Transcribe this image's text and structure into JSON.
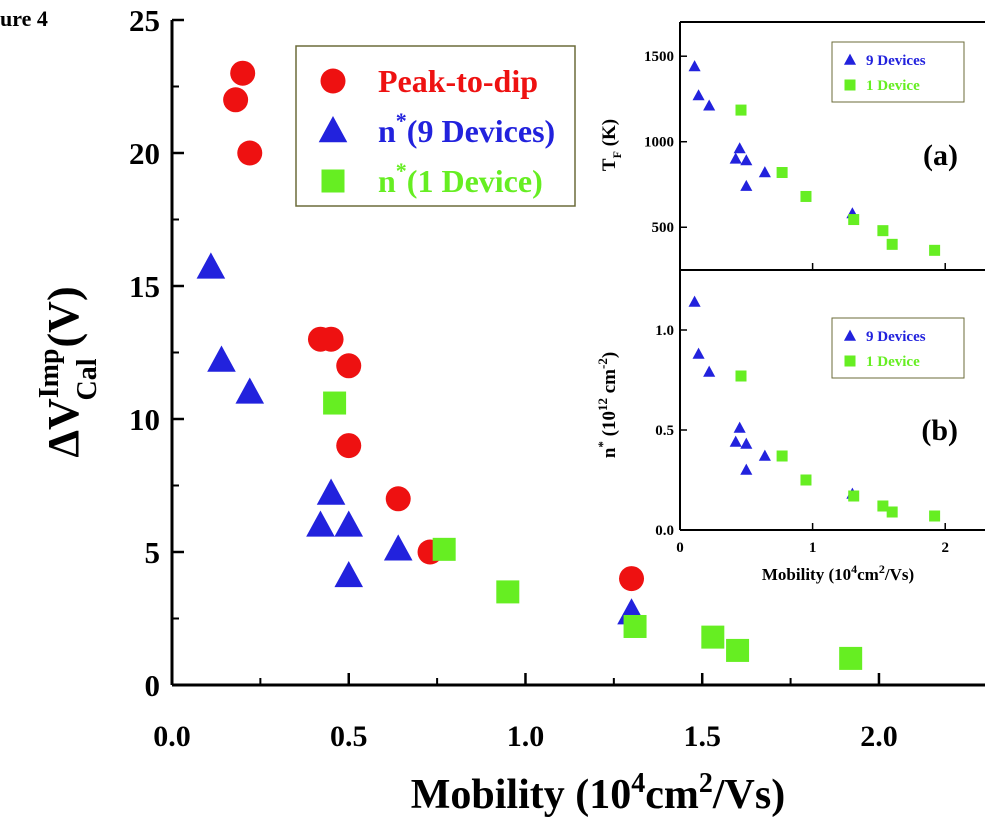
{
  "figure_label": "ure 4",
  "chart_data": [
    {
      "type": "scatter",
      "xlabel": "Mobility (10⁴cm²/Vs)",
      "xlabel_parts": {
        "pre": "Mobility (10",
        "sup1": "4",
        "mid": "cm",
        "sup2": "2",
        "post": "/Vs)"
      },
      "ylabel": "ΔV Cal Imp (V)",
      "ylabel_parts": {
        "pre": "ΔV",
        "sup": "Imp",
        "sub": "Cal",
        "post": " (V)"
      },
      "xlim": [
        0,
        2.3
      ],
      "ylim": [
        0,
        25
      ],
      "x_ticks": [
        0.0,
        0.5,
        1.0,
        1.5,
        2.0
      ],
      "x_tick_labels": [
        "0.0",
        "0.5",
        "1.0",
        "1.5",
        "2.0"
      ],
      "y_ticks": [
        0,
        5,
        10,
        15,
        20,
        25
      ],
      "y_tick_labels": [
        "0",
        "5",
        "10",
        "15",
        "20",
        "25"
      ],
      "legend_position": "top-center",
      "series": [
        {
          "name": "Peak-to-dip",
          "label_main": "Peak-to-dip",
          "marker": "circle",
          "color": "#ee1111",
          "points": [
            [
              0.2,
              23
            ],
            [
              0.18,
              22
            ],
            [
              0.22,
              20
            ],
            [
              0.42,
              13
            ],
            [
              0.45,
              13
            ],
            [
              0.5,
              12
            ],
            [
              0.5,
              9
            ],
            [
              0.64,
              7
            ],
            [
              0.73,
              5
            ],
            [
              1.3,
              4
            ]
          ]
        },
        {
          "name": "n*(9 Devices)",
          "label_main": "n",
          "label_sup": "*",
          "label_post": "(9 Devices)",
          "marker": "triangle",
          "color": "#2222dd",
          "points": [
            [
              0.11,
              15.7
            ],
            [
              0.14,
              12.2
            ],
            [
              0.22,
              11
            ],
            [
              0.45,
              7.2
            ],
            [
              0.42,
              6
            ],
            [
              0.5,
              6
            ],
            [
              0.5,
              4.1
            ],
            [
              0.64,
              5.1
            ],
            [
              1.3,
              2.7
            ]
          ]
        },
        {
          "name": "n*(1 Device)",
          "label_main": "n",
          "label_sup": "*",
          "label_post": "(1 Device)",
          "marker": "square",
          "color": "#66ee22",
          "points": [
            [
              0.46,
              10.6
            ],
            [
              0.77,
              5.1
            ],
            [
              0.95,
              3.5
            ],
            [
              1.31,
              2.2
            ],
            [
              1.53,
              1.8
            ],
            [
              1.6,
              1.3
            ],
            [
              1.92,
              1.0
            ]
          ]
        }
      ]
    },
    {
      "type": "scatter",
      "panel_label": "(a)",
      "ylabel_parts": {
        "pre": "T",
        "sub": "F",
        "post": " (K)"
      },
      "xlim": [
        0,
        2.3
      ],
      "ylim": [
        250,
        1700
      ],
      "y_ticks": [
        500,
        1000,
        1500
      ],
      "y_tick_labels": [
        "500",
        "1000",
        "1500"
      ],
      "legend_position": "top-right",
      "series": [
        {
          "name": "9 Devices",
          "marker": "triangle",
          "color": "#2222dd",
          "points": [
            [
              0.11,
              1440
            ],
            [
              0.14,
              1270
            ],
            [
              0.22,
              1210
            ],
            [
              0.42,
              900
            ],
            [
              0.45,
              960
            ],
            [
              0.5,
              890
            ],
            [
              0.5,
              740
            ],
            [
              0.64,
              820
            ],
            [
              1.3,
              580
            ]
          ]
        },
        {
          "name": "1 Device",
          "marker": "square",
          "color": "#66ee22",
          "points": [
            [
              0.46,
              1185
            ],
            [
              0.77,
              820
            ],
            [
              0.95,
              680
            ],
            [
              1.31,
              545
            ],
            [
              1.53,
              480
            ],
            [
              1.6,
              400
            ],
            [
              1.92,
              365
            ]
          ]
        }
      ]
    },
    {
      "type": "scatter",
      "panel_label": "(b)",
      "xlabel_parts": {
        "pre": "Mobility (10",
        "sup1": "4",
        "mid": "cm",
        "sup2": "2",
        "post": "/Vs)"
      },
      "ylabel_parts": {
        "pre": "n",
        "sup": "*",
        "mid": " (10",
        "sup2": "12",
        "post": " cm",
        "sup3": "-2",
        "end": ")"
      },
      "xlim": [
        0,
        2.3
      ],
      "ylim": [
        0,
        1.3
      ],
      "x_ticks": [
        0,
        1,
        2
      ],
      "x_tick_labels": [
        "0",
        "1",
        "2"
      ],
      "y_ticks": [
        0.0,
        0.5,
        1.0
      ],
      "y_tick_labels": [
        "0.0",
        "0.5",
        "1.0"
      ],
      "legend_position": "top-right",
      "series": [
        {
          "name": "9 Devices",
          "marker": "triangle",
          "color": "#2222dd",
          "points": [
            [
              0.11,
              1.14
            ],
            [
              0.14,
              0.88
            ],
            [
              0.22,
              0.79
            ],
            [
              0.42,
              0.44
            ],
            [
              0.45,
              0.51
            ],
            [
              0.5,
              0.43
            ],
            [
              0.5,
              0.3
            ],
            [
              0.64,
              0.37
            ],
            [
              1.3,
              0.18
            ]
          ]
        },
        {
          "name": "1 Device",
          "marker": "square",
          "color": "#66ee22",
          "points": [
            [
              0.46,
              0.77
            ],
            [
              0.77,
              0.37
            ],
            [
              0.95,
              0.25
            ],
            [
              1.31,
              0.17
            ],
            [
              1.53,
              0.12
            ],
            [
              1.6,
              0.09
            ],
            [
              1.92,
              0.07
            ]
          ]
        }
      ]
    }
  ]
}
